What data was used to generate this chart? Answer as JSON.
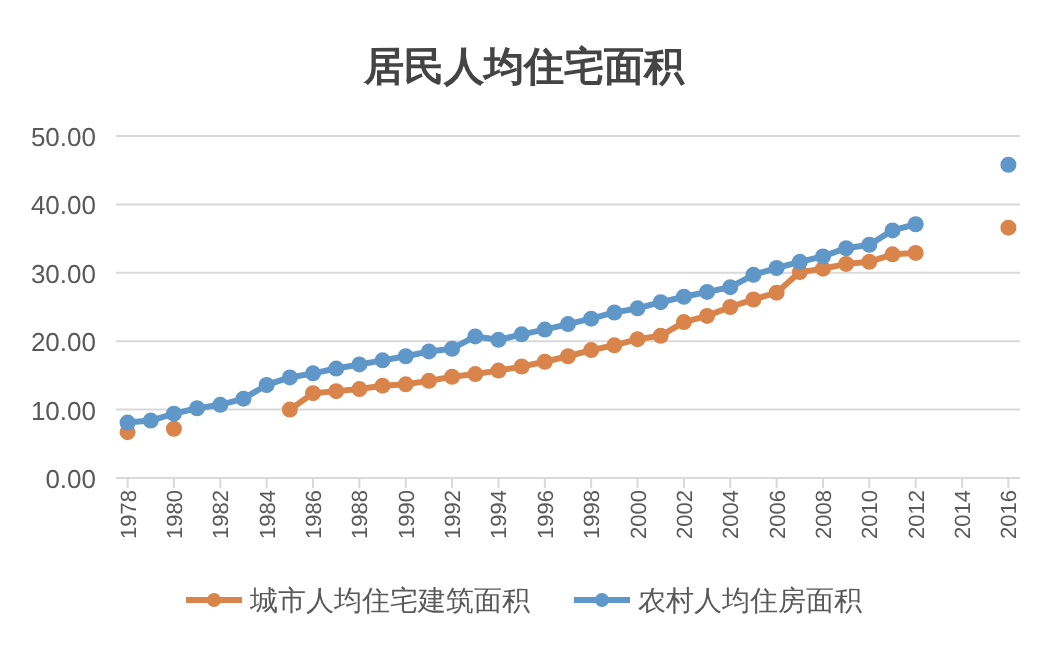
{
  "chart_data": {
    "type": "line",
    "title": "居民人均住宅面积",
    "x": [
      1978,
      1979,
      1980,
      1981,
      1982,
      1983,
      1984,
      1985,
      1986,
      1987,
      1988,
      1989,
      1990,
      1991,
      1992,
      1993,
      1994,
      1995,
      1996,
      1997,
      1998,
      1999,
      2000,
      2001,
      2002,
      2003,
      2004,
      2005,
      2006,
      2007,
      2008,
      2009,
      2010,
      2011,
      2012,
      2013,
      2014,
      2015,
      2016
    ],
    "series": [
      {
        "name": "城市人均住宅建筑面积",
        "color": "#d9844a",
        "values": [
          6.7,
          null,
          7.2,
          null,
          null,
          null,
          null,
          10.0,
          12.4,
          12.7,
          13.0,
          13.5,
          13.7,
          14.2,
          14.8,
          15.2,
          15.7,
          16.3,
          17.0,
          17.8,
          18.7,
          19.4,
          20.3,
          20.8,
          22.8,
          23.7,
          25.0,
          26.1,
          27.1,
          30.1,
          30.6,
          31.3,
          31.6,
          32.7,
          32.9,
          null,
          null,
          null,
          36.6
        ]
      },
      {
        "name": "农村人均住房面积",
        "color": "#5f97c8",
        "values": [
          8.1,
          8.4,
          9.4,
          10.2,
          10.7,
          11.6,
          13.6,
          14.7,
          15.3,
          16.0,
          16.6,
          17.2,
          17.8,
          18.5,
          18.9,
          20.7,
          20.2,
          21.0,
          21.7,
          22.5,
          23.3,
          24.2,
          24.8,
          25.7,
          26.5,
          27.2,
          27.9,
          29.7,
          30.7,
          31.6,
          32.4,
          33.6,
          34.1,
          36.2,
          37.1,
          null,
          null,
          null,
          45.8
        ]
      }
    ],
    "xlim": [
      1977.5,
      2016.5
    ],
    "xticks": [
      1978,
      1980,
      1982,
      1984,
      1986,
      1988,
      1990,
      1992,
      1994,
      1996,
      1998,
      2000,
      2002,
      2004,
      2006,
      2008,
      2010,
      2012,
      2014,
      2016
    ],
    "ylim": [
      0,
      50
    ],
    "yticks": [
      {
        "value": 0,
        "label": "0.00"
      },
      {
        "value": 10,
        "label": "10.00"
      },
      {
        "value": 20,
        "label": "20.00"
      },
      {
        "value": 30,
        "label": "30.00"
      },
      {
        "value": 40,
        "label": "40.00"
      },
      {
        "value": 50,
        "label": "50.00"
      }
    ],
    "grid": "y",
    "marker": "circle",
    "line_style": "solid",
    "legend": "bottom"
  }
}
